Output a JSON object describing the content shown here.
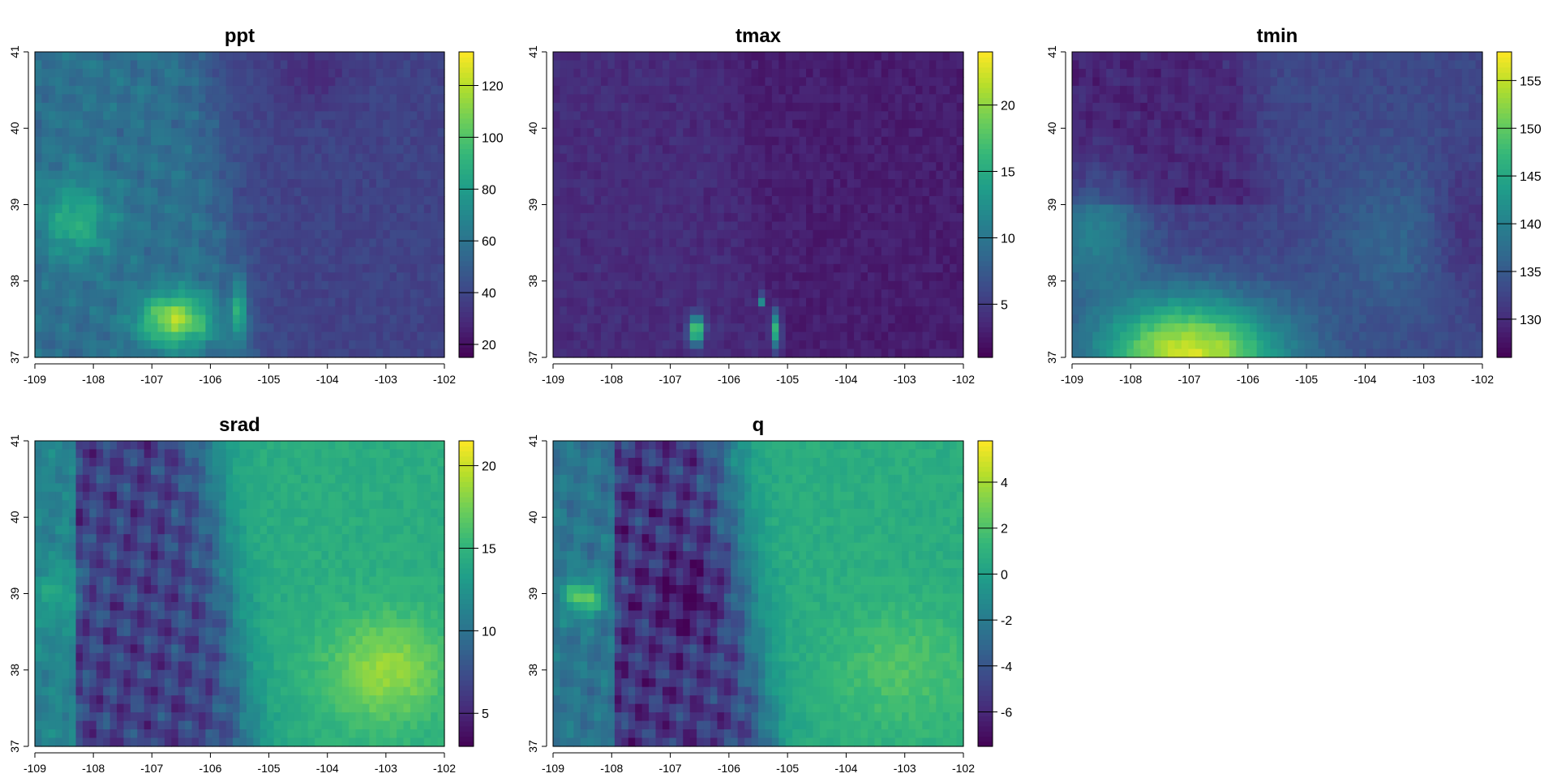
{
  "chart_data": [
    {
      "type": "heatmap",
      "title": "ppt",
      "xlim": [
        -109,
        -102
      ],
      "ylim": [
        37,
        41
      ],
      "x_ticks": [
        "-109",
        "-108",
        "-107",
        "-106",
        "-105",
        "-104",
        "-103",
        "-102"
      ],
      "y_ticks": [
        "37",
        "38",
        "39",
        "40",
        "41"
      ],
      "colorbar": {
        "colormap": "viridis",
        "range": [
          15,
          133
        ],
        "ticks": [
          "20",
          "40",
          "60",
          "80",
          "100",
          "120"
        ]
      },
      "grid": false
    },
    {
      "type": "heatmap",
      "title": "tmax",
      "xlim": [
        -109,
        -102
      ],
      "ylim": [
        37,
        41
      ],
      "x_ticks": [
        "-109",
        "-108",
        "-107",
        "-106",
        "-105",
        "-104",
        "-103",
        "-102"
      ],
      "y_ticks": [
        "37",
        "38",
        "39",
        "40",
        "41"
      ],
      "colorbar": {
        "colormap": "viridis",
        "range": [
          1,
          24
        ],
        "ticks": [
          "5",
          "10",
          "15",
          "20"
        ]
      },
      "grid": false
    },
    {
      "type": "heatmap",
      "title": "tmin",
      "xlim": [
        -109,
        -102
      ],
      "ylim": [
        37,
        41
      ],
      "x_ticks": [
        "-109",
        "-108",
        "-107",
        "-106",
        "-105",
        "-104",
        "-103",
        "-102"
      ],
      "y_ticks": [
        "37",
        "38",
        "39",
        "40",
        "41"
      ],
      "colorbar": {
        "colormap": "viridis",
        "range": [
          126,
          158
        ],
        "ticks": [
          "130",
          "135",
          "140",
          "145",
          "150",
          "155"
        ]
      },
      "grid": false
    },
    {
      "type": "heatmap",
      "title": "srad",
      "xlim": [
        -109,
        -102
      ],
      "ylim": [
        37,
        41
      ],
      "x_ticks": [
        "-109",
        "-108",
        "-107",
        "-106",
        "-105",
        "-104",
        "-103",
        "-102"
      ],
      "y_ticks": [
        "37",
        "38",
        "39",
        "40",
        "41"
      ],
      "colorbar": {
        "colormap": "viridis",
        "range": [
          3,
          21.5
        ],
        "ticks": [
          "5",
          "10",
          "15",
          "20"
        ]
      },
      "grid": false
    },
    {
      "type": "heatmap",
      "title": "q",
      "xlim": [
        -109,
        -102
      ],
      "ylim": [
        37,
        41
      ],
      "x_ticks": [
        "-109",
        "-108",
        "-107",
        "-106",
        "-105",
        "-104",
        "-103",
        "-102"
      ],
      "y_ticks": [
        "37",
        "38",
        "39",
        "40",
        "41"
      ],
      "colorbar": {
        "colormap": "viridis",
        "range": [
          -7.5,
          5.8
        ],
        "ticks": [
          "-6",
          "-4",
          "-2",
          "0",
          "2",
          "4"
        ]
      },
      "grid": false
    }
  ],
  "colors": {
    "viridis": [
      "#440154",
      "#482878",
      "#3e4989",
      "#31688e",
      "#26828e",
      "#1f9e89",
      "#35b779",
      "#6ece58",
      "#b5de2b",
      "#fde725"
    ]
  }
}
